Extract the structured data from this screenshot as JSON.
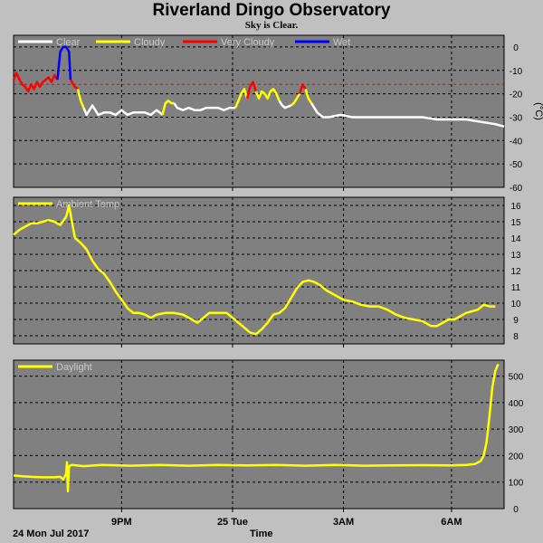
{
  "header": {
    "title": "Riverland Dingo Observatory",
    "subtitle": "Sky is Clear."
  },
  "footer": {
    "date": "24 Mon Jul 2017",
    "xlabel": "Time"
  },
  "colors": {
    "background": "#c0c0c0",
    "plot_bg": "#808080",
    "clear": "#ffffff",
    "cloudy": "#ffff00",
    "very_cloudy": "#ff0000",
    "wet": "#0000ff",
    "threshold": "#ff0000"
  },
  "x_ticks": [
    "9PM",
    "25 Tue",
    "3AM",
    "6AM"
  ],
  "chart_data": [
    {
      "type": "line",
      "name": "sky",
      "ylabel": "(°C)",
      "ylim": [
        -60,
        5
      ],
      "yticks": [
        0,
        -10,
        -20,
        -30,
        -40,
        -50,
        -60
      ],
      "threshold": -16,
      "legend": [
        "Clear",
        "Cloudy",
        "Very Cloudy",
        "Wet"
      ],
      "series": [
        {
          "name": "Very Cloudy",
          "color": "#ff0000",
          "points": [
            [
              0,
              -14
            ],
            [
              1,
              -11
            ],
            [
              2,
              -14
            ],
            [
              3,
              -16
            ],
            [
              4,
              -17
            ],
            [
              5,
              -19
            ],
            [
              6,
              -16
            ],
            [
              7,
              -18
            ],
            [
              8,
              -15
            ],
            [
              9,
              -17
            ],
            [
              10,
              -15
            ],
            [
              11,
              -14
            ],
            [
              12,
              -13
            ],
            [
              13,
              -15
            ],
            [
              14,
              -12
            ],
            [
              15,
              -14
            ]
          ]
        },
        {
          "name": "Wet",
          "color": "#0000ff",
          "points": [
            [
              15,
              -14
            ],
            [
              16,
              -2
            ],
            [
              17,
              0
            ],
            [
              18,
              0
            ],
            [
              19,
              -2
            ],
            [
              19.5,
              -14
            ]
          ]
        },
        {
          "name": "Very Cloudy",
          "color": "#ff0000",
          "points": [
            [
              19.5,
              -14
            ],
            [
              20,
              -15
            ],
            [
              21,
              -17
            ],
            [
              22,
              -18
            ]
          ]
        },
        {
          "name": "Cloudy",
          "color": "#ffff00",
          "points": [
            [
              22,
              -18
            ],
            [
              23,
              -23
            ],
            [
              24,
              -26
            ]
          ]
        },
        {
          "name": "Clear",
          "color": "#ffffff",
          "points": [
            [
              24,
              -26
            ],
            [
              25,
              -29
            ],
            [
              27,
              -25
            ],
            [
              28,
              -27
            ],
            [
              29,
              -29
            ],
            [
              31,
              -28
            ],
            [
              33,
              -28
            ],
            [
              35,
              -29
            ],
            [
              37,
              -27
            ],
            [
              39,
              -29
            ],
            [
              41,
              -28
            ],
            [
              43,
              -28
            ],
            [
              45,
              -28
            ],
            [
              47,
              -29
            ],
            [
              49,
              -27
            ],
            [
              51,
              -29
            ]
          ]
        },
        {
          "name": "Cloudy",
          "color": "#ffff00",
          "points": [
            [
              51,
              -29
            ],
            [
              52,
              -24
            ],
            [
              53,
              -23
            ],
            [
              54,
              -24
            ],
            [
              55,
              -24
            ]
          ]
        },
        {
          "name": "Clear",
          "color": "#ffffff",
          "points": [
            [
              55,
              -24
            ],
            [
              56,
              -26
            ],
            [
              58,
              -27
            ],
            [
              60,
              -26
            ],
            [
              62,
              -27
            ],
            [
              64,
              -27
            ],
            [
              66,
              -26
            ],
            [
              68,
              -26
            ],
            [
              70,
              -26
            ],
            [
              72,
              -27
            ],
            [
              74,
              -26
            ],
            [
              76,
              -26
            ]
          ]
        },
        {
          "name": "Cloudy",
          "color": "#ffff00",
          "points": [
            [
              76,
              -26
            ],
            [
              77,
              -23
            ],
            [
              78,
              -20
            ],
            [
              79,
              -18
            ],
            [
              80,
              -22
            ]
          ]
        },
        {
          "name": "Very Cloudy",
          "color": "#ff0000",
          "points": [
            [
              80,
              -22
            ],
            [
              81,
              -17
            ],
            [
              82,
              -15
            ],
            [
              83,
              -19
            ]
          ]
        },
        {
          "name": "Cloudy",
          "color": "#ffff00",
          "points": [
            [
              83,
              -19
            ],
            [
              84,
              -22
            ],
            [
              85,
              -19
            ],
            [
              86,
              -20
            ],
            [
              87,
              -22
            ],
            [
              88,
              -19
            ],
            [
              89,
              -18
            ],
            [
              90,
              -20
            ],
            [
              91,
              -23
            ]
          ]
        },
        {
          "name": "Clear",
          "color": "#ffffff",
          "points": [
            [
              91,
              -23
            ],
            [
              92,
              -25
            ],
            [
              93,
              -26
            ],
            [
              95,
              -25
            ]
          ]
        },
        {
          "name": "Cloudy",
          "color": "#ffff00",
          "points": [
            [
              95,
              -25
            ],
            [
              96,
              -24
            ],
            [
              97,
              -22
            ],
            [
              98,
              -20
            ]
          ]
        },
        {
          "name": "Very Cloudy",
          "color": "#ff0000",
          "points": [
            [
              98,
              -20
            ],
            [
              99,
              -16
            ],
            [
              100,
              -18
            ]
          ]
        },
        {
          "name": "Cloudy",
          "color": "#ffff00",
          "points": [
            [
              100,
              -18
            ],
            [
              101,
              -22
            ],
            [
              102,
              -24
            ]
          ]
        },
        {
          "name": "Clear",
          "color": "#ffffff",
          "points": [
            [
              102,
              -24
            ],
            [
              104,
              -28
            ],
            [
              106,
              -30
            ],
            [
              108,
              -30
            ],
            [
              112,
              -29
            ],
            [
              116,
              -30
            ],
            [
              120,
              -30
            ],
            [
              125,
              -30
            ],
            [
              130,
              -30
            ],
            [
              135,
              -30
            ],
            [
              140,
              -30
            ],
            [
              145,
              -31
            ],
            [
              150,
              -31
            ],
            [
              155,
              -31
            ],
            [
              160,
              -32
            ],
            [
              165,
              -33
            ],
            [
              168,
              -34
            ]
          ]
        }
      ]
    },
    {
      "type": "line",
      "name": "ambient",
      "legend": [
        "Ambient Temp"
      ],
      "ylim": [
        7.5,
        16.5
      ],
      "yticks": [
        8,
        9,
        10,
        11,
        12,
        13,
        14,
        15,
        16
      ],
      "series": [
        {
          "name": "Ambient Temp",
          "color": "#ffff00",
          "points": [
            [
              0,
              14.2
            ],
            [
              2,
              14.5
            ],
            [
              4,
              14.7
            ],
            [
              6,
              14.9
            ],
            [
              8,
              14.9
            ],
            [
              10,
              15.0
            ],
            [
              12,
              15.1
            ],
            [
              14,
              15.0
            ],
            [
              16,
              14.8
            ],
            [
              18,
              15.3
            ],
            [
              19,
              16.0
            ],
            [
              20,
              15.0
            ],
            [
              21,
              14.0
            ],
            [
              23,
              13.7
            ],
            [
              25,
              13.3
            ],
            [
              27,
              12.6
            ],
            [
              29,
              12.1
            ],
            [
              31,
              11.8
            ],
            [
              33,
              11.3
            ],
            [
              35,
              10.7
            ],
            [
              37,
              10.2
            ],
            [
              39,
              9.7
            ],
            [
              41,
              9.4
            ],
            [
              43,
              9.4
            ],
            [
              45,
              9.3
            ],
            [
              47,
              9.1
            ],
            [
              49,
              9.3
            ],
            [
              52,
              9.4
            ],
            [
              55,
              9.4
            ],
            [
              58,
              9.3
            ],
            [
              61,
              9.0
            ],
            [
              63,
              8.8
            ],
            [
              65,
              9.1
            ],
            [
              67,
              9.4
            ],
            [
              70,
              9.4
            ],
            [
              73,
              9.4
            ],
            [
              75,
              9.1
            ],
            [
              77,
              8.8
            ],
            [
              79,
              8.5
            ],
            [
              81,
              8.2
            ],
            [
              83,
              8.1
            ],
            [
              85,
              8.4
            ],
            [
              87,
              8.8
            ],
            [
              89,
              9.3
            ],
            [
              91,
              9.4
            ],
            [
              93,
              9.7
            ],
            [
              95,
              10.3
            ],
            [
              97,
              10.9
            ],
            [
              99,
              11.3
            ],
            [
              101,
              11.4
            ],
            [
              103,
              11.3
            ],
            [
              105,
              11.1
            ],
            [
              107,
              10.8
            ],
            [
              110,
              10.5
            ],
            [
              113,
              10.2
            ],
            [
              116,
              10.1
            ],
            [
              119,
              9.9
            ],
            [
              122,
              9.8
            ],
            [
              125,
              9.8
            ],
            [
              128,
              9.6
            ],
            [
              131,
              9.3
            ],
            [
              134,
              9.1
            ],
            [
              137,
              9.0
            ],
            [
              140,
              8.9
            ],
            [
              143,
              8.6
            ],
            [
              145,
              8.6
            ],
            [
              147,
              8.8
            ],
            [
              149,
              9.0
            ],
            [
              151,
              9.0
            ],
            [
              153,
              9.2
            ],
            [
              155,
              9.4
            ],
            [
              157,
              9.5
            ],
            [
              159,
              9.6
            ],
            [
              161,
              9.9
            ],
            [
              163,
              9.8
            ],
            [
              165,
              9.8
            ]
          ]
        }
      ]
    },
    {
      "type": "line",
      "name": "daylight",
      "legend": [
        "Daylight"
      ],
      "ylim": [
        0,
        560
      ],
      "yticks": [
        0,
        100,
        200,
        300,
        400,
        500
      ],
      "series": [
        {
          "name": "Daylight",
          "color": "#ffff00",
          "points": [
            [
              0,
              125
            ],
            [
              3,
              122
            ],
            [
              6,
              120
            ],
            [
              10,
              118
            ],
            [
              14,
              118
            ],
            [
              16,
              120
            ],
            [
              17,
              110
            ],
            [
              18,
              130
            ],
            [
              18.3,
              175
            ],
            [
              18.6,
              65
            ],
            [
              19,
              160
            ],
            [
              20,
              165
            ],
            [
              24,
              160
            ],
            [
              30,
              165
            ],
            [
              40,
              162
            ],
            [
              50,
              165
            ],
            [
              60,
              162
            ],
            [
              70,
              165
            ],
            [
              80,
              163
            ],
            [
              90,
              165
            ],
            [
              100,
              162
            ],
            [
              110,
              165
            ],
            [
              120,
              162
            ],
            [
              130,
              163
            ],
            [
              140,
              164
            ],
            [
              150,
              163
            ],
            [
              155,
              165
            ],
            [
              158,
              168
            ],
            [
              160,
              180
            ],
            [
              161,
              200
            ],
            [
              162,
              250
            ],
            [
              163,
              350
            ],
            [
              164,
              460
            ],
            [
              165,
              520
            ],
            [
              166,
              545
            ]
          ]
        }
      ]
    }
  ]
}
